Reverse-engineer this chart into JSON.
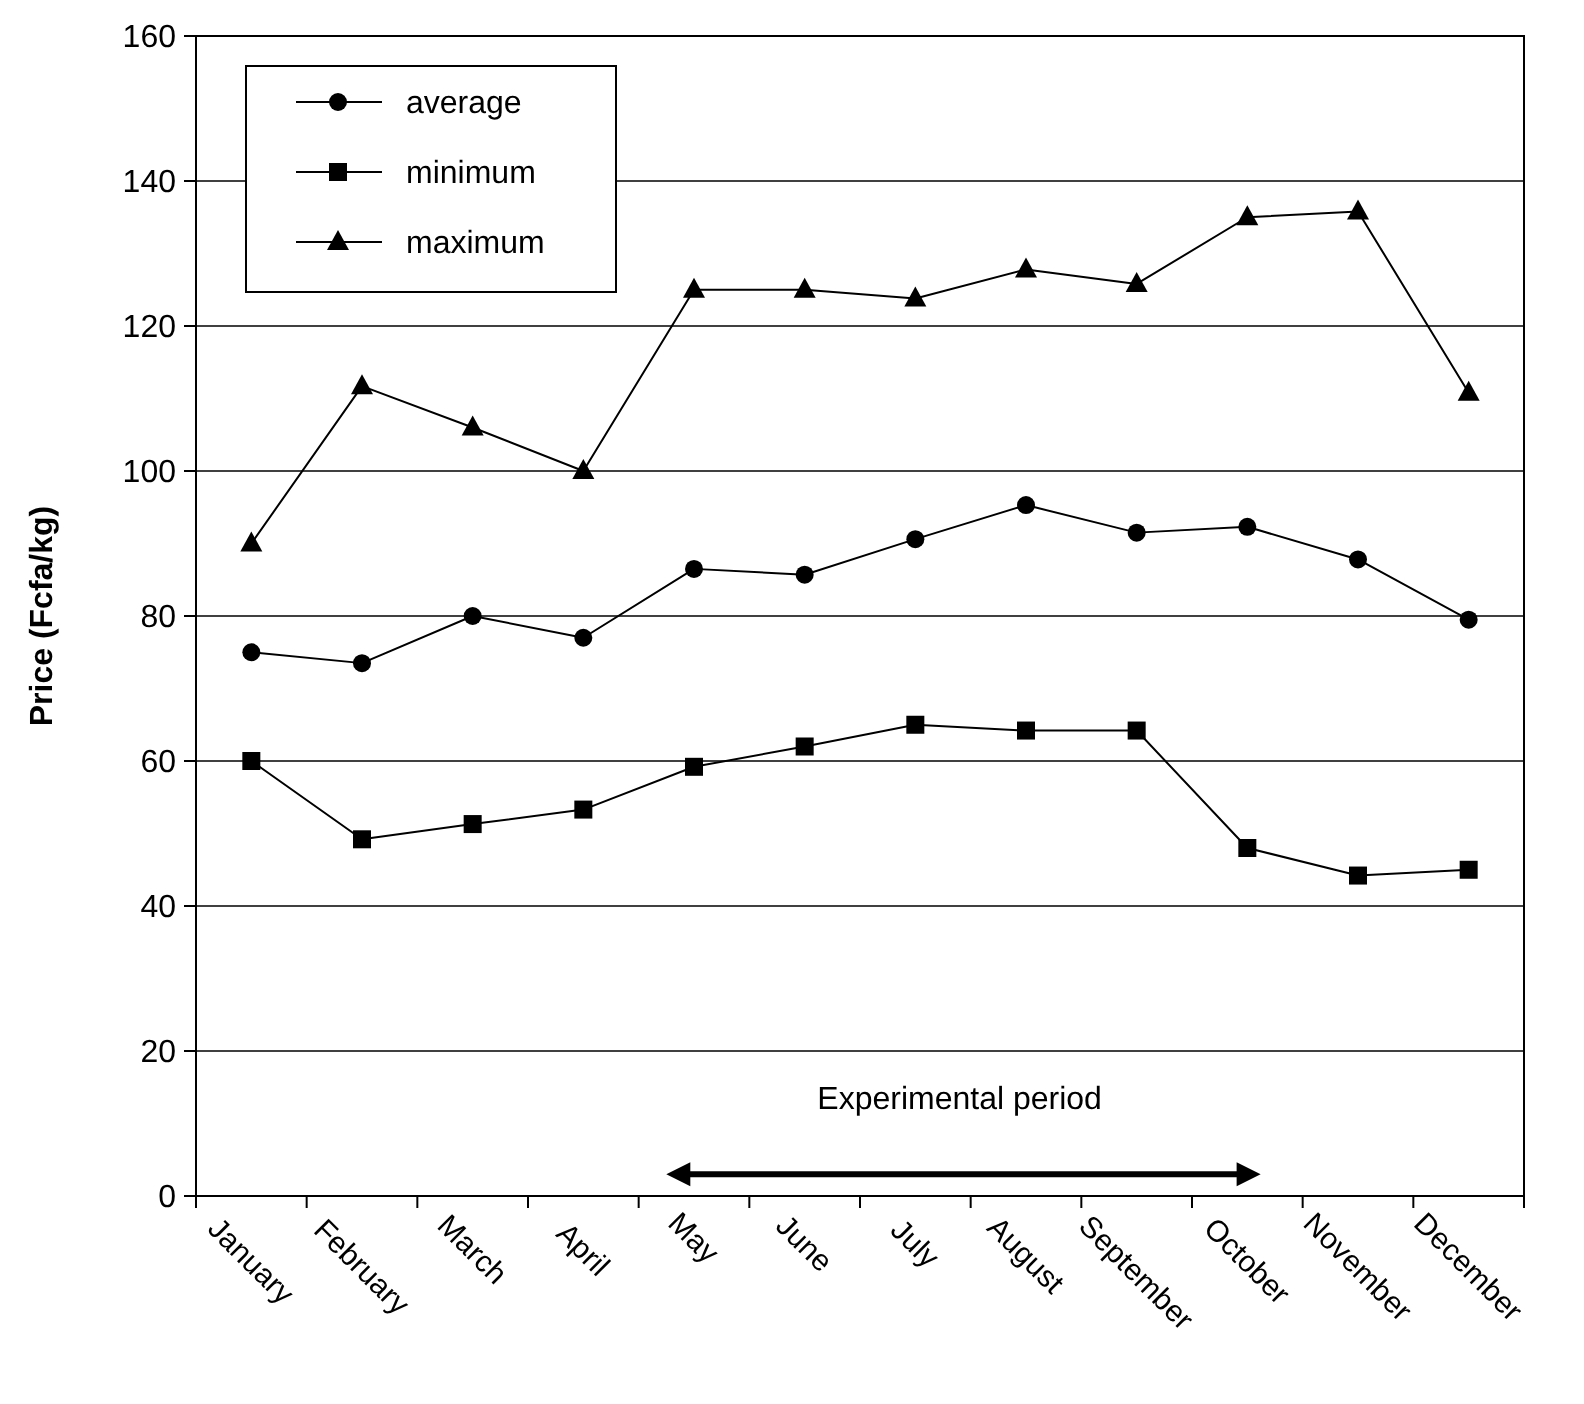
{
  "chart_data": {
    "type": "line",
    "ylabel": "Price (Fcfa/kg)",
    "categories": [
      "January",
      "February",
      "March",
      "April",
      "May",
      "June",
      "July",
      "August",
      "September",
      "October",
      "November",
      "December"
    ],
    "series": [
      {
        "name": "average",
        "color": "#000000",
        "marker": "circle",
        "values": [
          75,
          73.5,
          80,
          77,
          86.5,
          85.7,
          90.6,
          95.3,
          91.5,
          92.3,
          87.8,
          79.5
        ]
      },
      {
        "name": "minimum",
        "color": "#000000",
        "marker": "square",
        "values": [
          60,
          49.2,
          51.3,
          53.3,
          59.2,
          62,
          65,
          64.2,
          64.2,
          48,
          44.2,
          45
        ]
      },
      {
        "name": "maximum",
        "color": "#000000",
        "marker": "triangle",
        "values": [
          90,
          111.7,
          106,
          100,
          125,
          125,
          123.8,
          127.8,
          125.8,
          135,
          135.8,
          110.8
        ]
      }
    ],
    "ylim": [
      0,
      160
    ],
    "yticks": [
      0,
      20,
      40,
      60,
      80,
      100,
      120,
      140,
      160
    ],
    "grid": "y",
    "legend": "top left",
    "line_style": "solid",
    "annotations": [
      "Experimental period"
    ]
  }
}
